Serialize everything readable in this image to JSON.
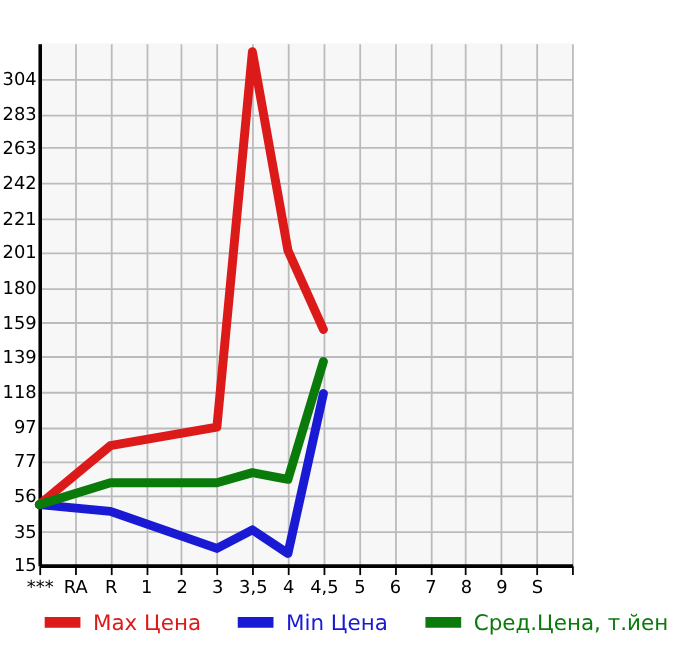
{
  "chart_data": {
    "type": "line",
    "categories": [
      "***",
      "RA",
      "R",
      "1",
      "2",
      "3",
      "3,5",
      "4",
      "4,5",
      "5",
      "6",
      "7",
      "8",
      "9",
      "S",
      null
    ],
    "series": [
      {
        "name": "Max Цена",
        "color": "#dd1a1a",
        "values": [
          51,
          null,
          86,
          null,
          null,
          97,
          320,
          202,
          155,
          null,
          null,
          null,
          null,
          null,
          null,
          null
        ]
      },
      {
        "name": "Min Цена",
        "color": "#1a1ad4",
        "values": [
          51,
          null,
          47,
          null,
          null,
          25,
          36,
          22,
          117,
          null,
          null,
          null,
          null,
          null,
          null,
          null
        ]
      },
      {
        "name": "Сред.Цена, т.йен",
        "color": "#0a7a0a",
        "values": [
          51,
          null,
          64,
          null,
          null,
          64,
          70,
          66,
          136,
          null,
          null,
          null,
          null,
          null,
          null,
          null
        ]
      }
    ],
    "ylim": [
      15,
      325
    ],
    "yticks": [
      15,
      35,
      56,
      77,
      97,
      118,
      139,
      159,
      180,
      201,
      221,
      242,
      263,
      283,
      304
    ],
    "grid": true,
    "legend": "bottom",
    "marker": "none",
    "line_style": "solid"
  }
}
